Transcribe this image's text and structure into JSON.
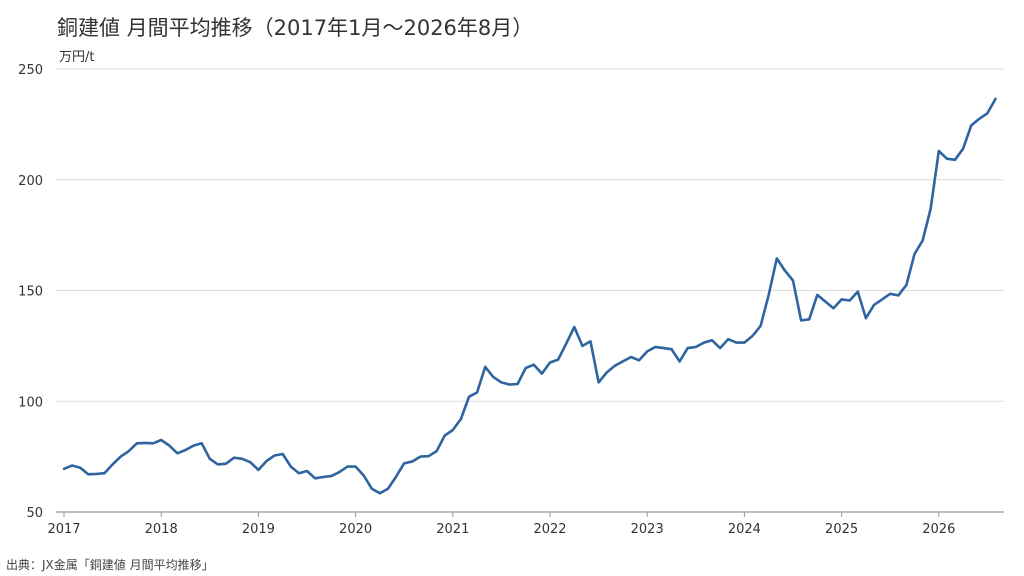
{
  "chart_data": {
    "type": "line",
    "title": "銅建値 月間平均推移（2017年1月〜2026年8月）",
    "ylabel": "万円/t",
    "xlabel": "",
    "source": "出典：JX金属「銅建値 月間平均推移」",
    "ylim": [
      50,
      250
    ],
    "yticks": [
      50,
      100,
      150,
      200,
      250
    ],
    "xticks": [
      "2017",
      "2018",
      "2019",
      "2020",
      "2021",
      "2022",
      "2023",
      "2024",
      "2025",
      "2026"
    ],
    "grid": "horizontal",
    "line_color": "#2e64a0",
    "series": [
      {
        "x_start": "2017-01",
        "frequency": "monthly",
        "values": [
          69.5,
          71,
          70,
          67,
          67.2,
          67.5,
          71.5,
          75,
          77.5,
          81,
          81.2,
          81,
          82.5,
          80,
          76.5,
          78,
          80,
          81,
          74,
          71.5,
          71.8,
          74.5,
          74,
          72.5,
          69,
          73,
          75.5,
          76.2,
          70.5,
          67.5,
          68.5,
          65.2,
          65.8,
          66.2,
          68,
          70.5,
          70.5,
          66.5,
          60.5,
          58.5,
          60.5,
          66,
          72,
          72.8,
          75,
          75.2,
          77.5,
          84.5,
          87,
          92,
          102,
          104,
          115.5,
          111,
          108.5,
          107.5,
          107.8,
          115,
          116.5,
          112.5,
          117.5,
          118.8,
          126,
          133.5,
          125,
          127,
          108.5,
          113,
          116,
          118,
          120,
          118.5,
          122.5,
          124.5,
          124,
          123.5,
          118,
          124,
          124.5,
          126.5,
          127.5,
          124,
          128,
          126.5,
          126.5,
          129.5,
          134,
          148,
          164.5,
          159,
          154.5,
          136.5,
          137,
          148,
          145,
          142,
          146,
          145.5,
          149.5,
          137.5,
          143.5,
          146,
          148.5,
          147.8,
          152.5,
          166.5,
          172.5,
          187,
          213,
          209.5,
          209,
          214,
          224.5,
          227.5,
          230,
          236.5
        ]
      }
    ]
  }
}
